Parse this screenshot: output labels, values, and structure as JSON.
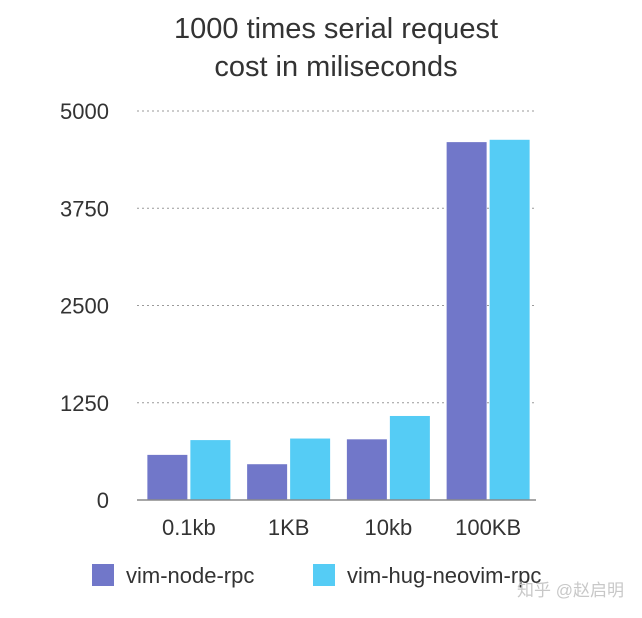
{
  "chart_data": {
    "type": "bar",
    "title": [
      "1000 times serial request",
      "cost in miliseconds"
    ],
    "categories": [
      "0.1kb",
      "1KB",
      "10kb",
      "100KB"
    ],
    "series": [
      {
        "name": "vim-node-rpc",
        "color": "#7177c9",
        "values": [
          580,
          460,
          780,
          4600
        ]
      },
      {
        "name": "vim-hug-neovim-rpc",
        "color": "#55ccf5",
        "values": [
          770,
          790,
          1080,
          4630
        ]
      }
    ],
    "ylim": [
      0,
      5000
    ],
    "yticks": [
      0,
      1250,
      2500,
      3750,
      5000
    ],
    "ytick_labels": [
      "0",
      "1250",
      "2500",
      "3750",
      "5000"
    ],
    "grid": true,
    "legend_position": "bottom"
  },
  "watermark": "知乎 @赵启明"
}
